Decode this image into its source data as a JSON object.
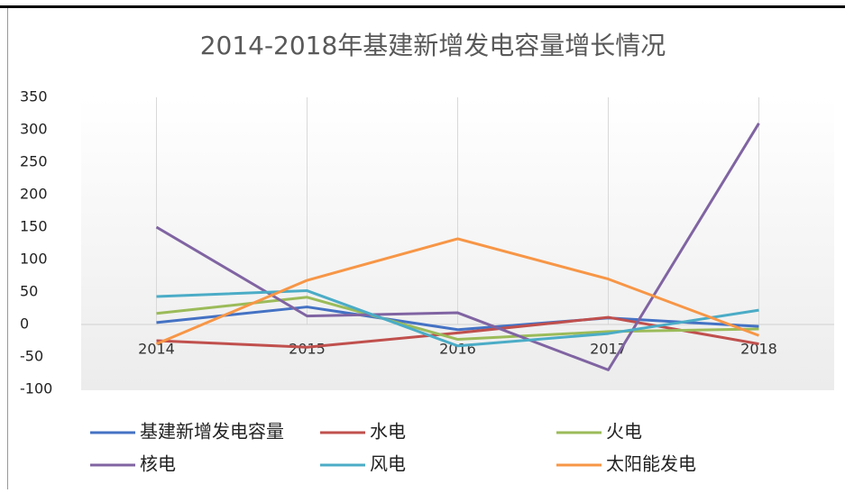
{
  "chart_data": {
    "type": "line",
    "title": "2014-2018年基建新增发电容量增长情况",
    "categories": [
      "2014",
      "2015",
      "2016",
      "2017",
      "2018"
    ],
    "series": [
      {
        "name": "基建新增发电容量",
        "color": "#4472c4",
        "values": [
          3,
          27,
          -8,
          10,
          -3
        ]
      },
      {
        "name": "水电",
        "color": "#c0504d",
        "values": [
          -25,
          -35,
          -13,
          11,
          -30
        ]
      },
      {
        "name": "火电",
        "color": "#9bbb59",
        "values": [
          17,
          42,
          -23,
          -11,
          -7
        ]
      },
      {
        "name": "核电",
        "color": "#8064a2",
        "values": [
          150,
          13,
          18,
          -70,
          310
        ]
      },
      {
        "name": "风电",
        "color": "#4bacc6",
        "values": [
          43,
          52,
          -33,
          -14,
          22
        ]
      },
      {
        "name": "太阳能发电",
        "color": "#f79646",
        "values": [
          -30,
          68,
          132,
          70,
          -17
        ]
      }
    ],
    "ylim": [
      -100,
      350
    ],
    "yticks": [
      -100,
      -50,
      0,
      50,
      100,
      150,
      200,
      250,
      300,
      350
    ],
    "grid": "x"
  }
}
